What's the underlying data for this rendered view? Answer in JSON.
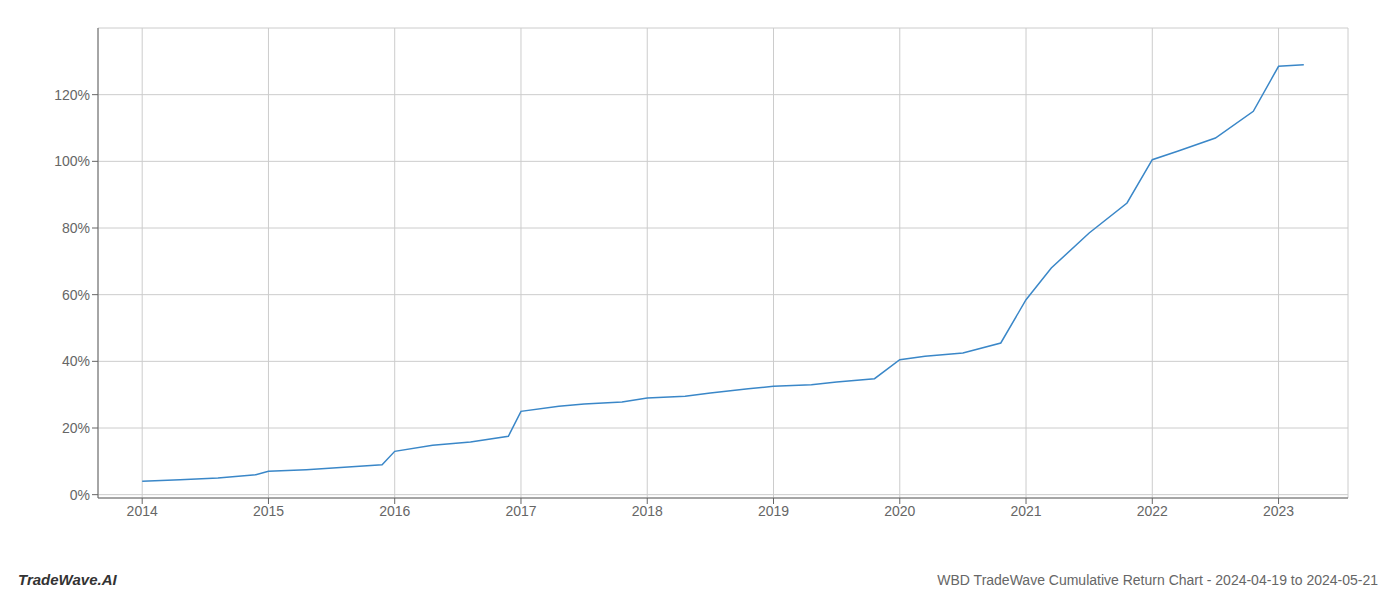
{
  "chart_data": {
    "type": "line",
    "title": "WBD TradeWave Cumulative Return Chart - 2024-04-19 to 2024-05-21",
    "annotations": [
      "TradeWave.AI"
    ],
    "color": "#3a87c8",
    "x": [
      2014.0,
      2014.3,
      2014.6,
      2014.9,
      2015.0,
      2015.3,
      2015.6,
      2015.9,
      2016.0,
      2016.3,
      2016.6,
      2016.9,
      2017.0,
      2017.3,
      2017.5,
      2017.8,
      2018.0,
      2018.3,
      2018.5,
      2018.8,
      2019.0,
      2019.3,
      2019.5,
      2019.8,
      2020.0,
      2020.2,
      2020.5,
      2020.8,
      2021.0,
      2021.2,
      2021.5,
      2021.8,
      2022.0,
      2022.2,
      2022.5,
      2022.8,
      2023.0,
      2023.2
    ],
    "values": [
      0.04,
      0.045,
      0.05,
      0.06,
      0.07,
      0.075,
      0.082,
      0.09,
      0.13,
      0.148,
      0.158,
      0.175,
      0.25,
      0.265,
      0.272,
      0.278,
      0.29,
      0.295,
      0.305,
      0.318,
      0.325,
      0.33,
      0.338,
      0.348,
      0.405,
      0.415,
      0.425,
      0.455,
      0.585,
      0.68,
      0.785,
      0.875,
      1.005,
      1.03,
      1.07,
      1.15,
      1.285,
      1.29
    ],
    "xlim": [
      2013.65,
      2023.55
    ],
    "ylim": [
      -0.01,
      1.4
    ],
    "xticks": [
      2014,
      2015,
      2016,
      2017,
      2018,
      2019,
      2020,
      2021,
      2022,
      2023
    ],
    "yticks": [
      {
        "value": 0.0,
        "label": "0%"
      },
      {
        "value": 0.2,
        "label": "20%"
      },
      {
        "value": 0.4,
        "label": "40%"
      },
      {
        "value": 0.6,
        "label": "60%"
      },
      {
        "value": 0.8,
        "label": "80%"
      },
      {
        "value": 1.0,
        "label": "100%"
      },
      {
        "value": 1.2,
        "label": "120%"
      }
    ],
    "grid": true
  }
}
